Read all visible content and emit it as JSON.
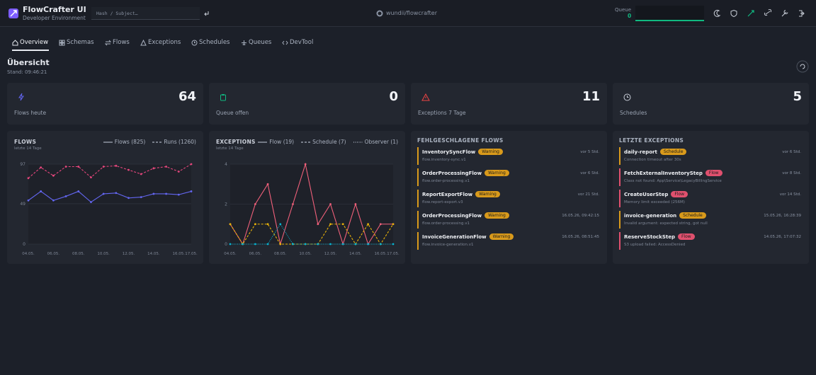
{
  "header": {
    "title": "FlowCrafter UI",
    "subtitle": "Developer Environment",
    "search_placeholder": "Hash / Subject…",
    "repo": "wundii/flowcrafter",
    "queue_label": "Queue",
    "queue_value": 0
  },
  "nav": [
    "Overview",
    "Schemas",
    "Flows",
    "Exceptions",
    "Schedules",
    "Queues",
    "DevTool"
  ],
  "page": {
    "title": "Übersicht",
    "stand": "Stand: 09:46:21"
  },
  "stats": [
    {
      "value": 64,
      "label": "Flows heute"
    },
    {
      "value": 0,
      "label": "Queue offen"
    },
    {
      "value": 11,
      "label": "Exceptions 7 Tage"
    },
    {
      "value": 5,
      "label": "Schedules"
    }
  ],
  "chart_data": [
    {
      "type": "line",
      "title": "FLOWS",
      "subtitle": "letzte 14 Tage",
      "categories": [
        "04.05.",
        null,
        "06.05.",
        null,
        "08.05.",
        null,
        "10.05.",
        null,
        "12.05.",
        null,
        "14.05.",
        null,
        "16.05.",
        "17.05."
      ],
      "ylim": [
        0,
        97
      ],
      "yticks": [
        0,
        49,
        97
      ],
      "grid": true,
      "series": [
        {
          "name": "Flows (825)",
          "color": "#6366f1",
          "style": "solid",
          "values": [
            53,
            64,
            53,
            58,
            64,
            51,
            61,
            62,
            56,
            57,
            61,
            61,
            60,
            64
          ]
        },
        {
          "name": "Runs (1260)",
          "color": "#e5467c",
          "style": "dashed",
          "values": [
            80,
            93,
            83,
            94,
            94,
            81,
            94,
            95,
            90,
            85,
            92,
            94,
            88,
            97
          ]
        }
      ]
    },
    {
      "type": "line",
      "title": "EXCEPTIONS",
      "subtitle": "letzte 14 Tage",
      "categories": [
        "04.05.",
        null,
        "06.05.",
        null,
        "08.05.",
        null,
        "10.05.",
        null,
        "12.05.",
        null,
        "14.05.",
        null,
        "16.05.",
        "17.05."
      ],
      "ylim": [
        0,
        4
      ],
      "yticks": [
        0,
        2,
        4
      ],
      "grid": true,
      "series": [
        {
          "name": "Flow (19)",
          "color": "#f0607a",
          "style": "solid",
          "values": [
            1,
            0,
            2,
            3,
            0,
            2,
            4,
            1,
            2,
            0,
            2,
            0,
            1,
            1
          ]
        },
        {
          "name": "Schedule (7)",
          "color": "#eab308",
          "style": "dashed",
          "values": [
            1,
            0,
            1,
            1,
            0,
            0,
            0,
            0,
            1,
            1,
            0,
            1,
            0,
            1
          ]
        },
        {
          "name": "Observer (1)",
          "color": "#06b6d4",
          "style": "dotted",
          "values": [
            0,
            0,
            0,
            0,
            1,
            0,
            0,
            0,
            0,
            0,
            0,
            0,
            0,
            0
          ]
        }
      ]
    }
  ],
  "lists": [
    {
      "title": "FEHLGESCHLAGENE FLOWS",
      "items": [
        {
          "name": "InventorySyncFlow",
          "badge": "Warning",
          "color": "#d99a1b",
          "detail": "flow.inventory-sync.v1",
          "time": "vor 5 Std."
        },
        {
          "name": "OrderProcessingFlow",
          "badge": "Warning",
          "color": "#d99a1b",
          "detail": "flow.order-processing.v1",
          "time": "vor 6 Std."
        },
        {
          "name": "ReportExportFlow",
          "badge": "Warning",
          "color": "#d99a1b",
          "detail": "flow.report-export.v3",
          "time": "vor 21 Std."
        },
        {
          "name": "OrderProcessingFlow",
          "badge": "Warning",
          "color": "#d99a1b",
          "detail": "flow.order-processing.v1",
          "time": "16.05.26, 09:42:15"
        },
        {
          "name": "InvoiceGenerationFlow",
          "badge": "Warning",
          "color": "#d99a1b",
          "detail": "flow.invoice-generation.v1",
          "time": "16.05.26, 08:51:45"
        }
      ]
    },
    {
      "title": "LETZTE EXCEPTIONS",
      "items": [
        {
          "name": "daily-report",
          "badge": "Schedule",
          "color": "#d99a1b",
          "detail": "Connection timeout after 30s",
          "time": "vor 6 Std."
        },
        {
          "name": "FetchExternalInventoryStep",
          "badge": "Flow",
          "color": "#e0506e",
          "detail": "Class not found: App\\Service\\LegacyBillingService",
          "time": "vor 8 Std."
        },
        {
          "name": "CreateUserStep",
          "badge": "Flow",
          "color": "#e0506e",
          "detail": "Memory limit exceeded (256M)",
          "time": "vor 14 Std."
        },
        {
          "name": "invoice-generation",
          "badge": "Schedule",
          "color": "#d99a1b",
          "detail": "Invalid argument: expected string, got null",
          "time": "15.05.26, 16:28:39"
        },
        {
          "name": "ReserveStockStep",
          "badge": "Flow",
          "color": "#e0506e",
          "detail": "S3 upload failed: AccessDenied",
          "time": "14.05.26, 17:07:32"
        }
      ]
    }
  ]
}
